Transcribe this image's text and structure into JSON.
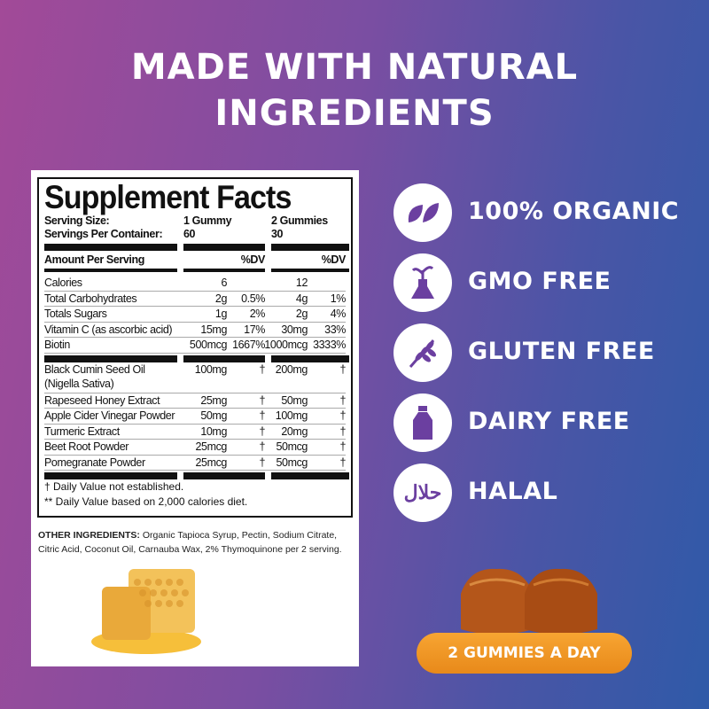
{
  "headline": [
    "MADE WITH NATURAL",
    "INGREDIENTS"
  ],
  "facts": {
    "title": "Supplement Facts",
    "serving_size_label": "Serving Size:",
    "serving_size_1": "1 Gummy",
    "serving_size_2": "2 Gummies",
    "servings_label": "Servings Per Container:",
    "servings_1": "60",
    "servings_2": "30",
    "amount_label": "Amount Per Serving",
    "dv_1": "%DV",
    "dv_2": "%DV",
    "nutrients": [
      {
        "name": "Calories",
        "a1": "6",
        "d1": "",
        "a2": "12",
        "d2": ""
      },
      {
        "name": "Total Carbohydrates",
        "a1": "2g",
        "d1": "0.5%",
        "a2": "4g",
        "d2": "1%"
      },
      {
        "name": "Totals Sugars",
        "a1": "1g",
        "d1": "2%",
        "a2": "2g",
        "d2": "4%"
      },
      {
        "name": "Vitamin C (as ascorbic acid)",
        "a1": "15mg",
        "d1": "17%",
        "a2": "30mg",
        "d2": "33%"
      },
      {
        "name": "Biotin",
        "a1": "500mcg",
        "d1": "1667%",
        "a2": "1000mcg",
        "d2": "3333%"
      }
    ],
    "ingredients": [
      {
        "name": "Black Cumin Seed Oil",
        "name2": "(Nigella Sativa)",
        "a1": "100mg",
        "d1": "†",
        "a2": "200mg",
        "d2": "†"
      },
      {
        "name": "Rapeseed Honey Extract",
        "a1": "25mg",
        "d1": "†",
        "a2": "50mg",
        "d2": "†"
      },
      {
        "name": "Apple Cider Vinegar Powder",
        "a1": "50mg",
        "d1": "†",
        "a2": "100mg",
        "d2": "†"
      },
      {
        "name": "Turmeric Extract",
        "a1": "10mg",
        "d1": "†",
        "a2": "20mg",
        "d2": "†"
      },
      {
        "name": "Beet Root Powder",
        "a1": "25mcg",
        "d1": "†",
        "a2": "50mcg",
        "d2": "†"
      },
      {
        "name": "Pomegranate Powder",
        "a1": "25mcg",
        "d1": "†",
        "a2": "50mcg",
        "d2": "†"
      }
    ],
    "footnote_1": "† Daily Value not established.",
    "footnote_2": "** Daily Value based on 2,000 calories diet."
  },
  "other_ingredients": {
    "label": "OTHER INGREDIENTS:",
    "text": " Organic Tapioca Syrup, Pectin, Sodium Citrate, Citric Acid, Coconut Oil, Carnauba Wax, 2% Thymoquinone per 2 serving."
  },
  "features": [
    {
      "icon": "leaves-icon",
      "label": "100% ORGANIC"
    },
    {
      "icon": "flask-plant-icon",
      "label": "GMO FREE"
    },
    {
      "icon": "wheat-icon",
      "label": "GLUTEN FREE"
    },
    {
      "icon": "milk-bottle-icon",
      "label": "DAIRY FREE"
    },
    {
      "icon": "halal-icon",
      "label": "HALAL",
      "icon_text": "حلال"
    }
  ],
  "badge": "2 GUMMIES A DAY",
  "colors": {
    "icon": "#6b3fa0",
    "badge": "#f29a28",
    "gradient_left": "#a24a98",
    "gradient_right": "#2f5aa8"
  }
}
